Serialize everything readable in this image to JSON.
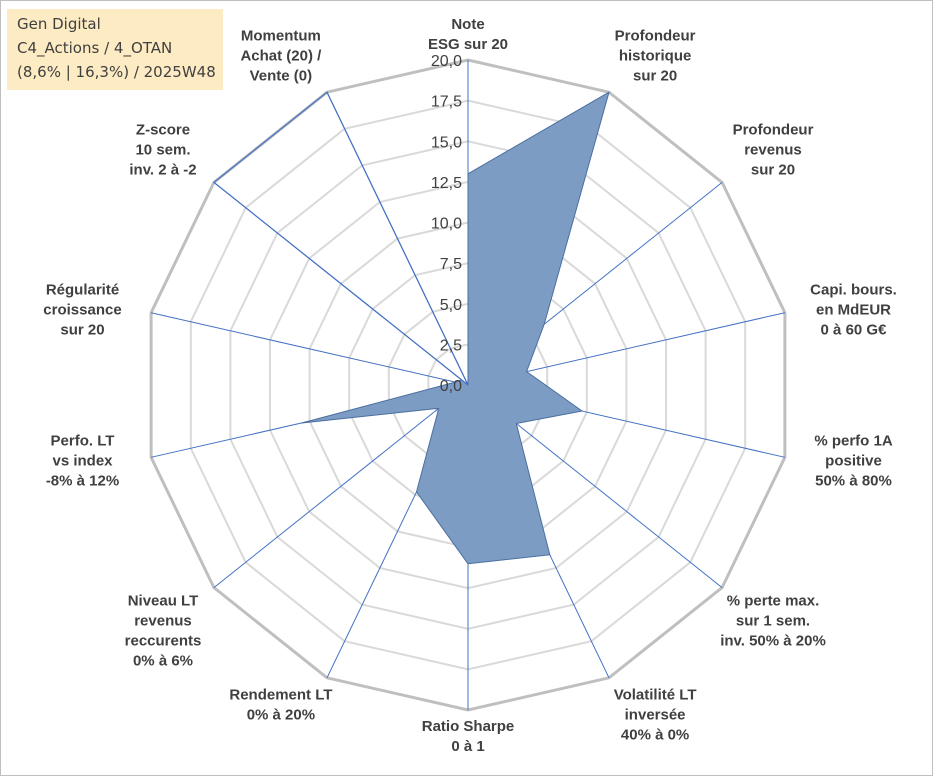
{
  "info": {
    "line1": "Gen Digital",
    "line2": "C4_Actions / 4_OTAN",
    "line3": "(8,6% | 16,3%) / 2025W48"
  },
  "chart_data": {
    "type": "radar",
    "title": "",
    "rmin": 0,
    "rmax": 20,
    "rings": [
      0,
      2.5,
      5,
      7.5,
      10,
      12.5,
      15,
      17.5,
      20
    ],
    "tick_labels": [
      "0,0",
      "2,5",
      "5,0",
      "7,5",
      "10,0",
      "12,5",
      "15,0",
      "17,5",
      "20,0"
    ],
    "axes": [
      {
        "label": [
          "Note",
          "ESG sur 20"
        ],
        "value": 13
      },
      {
        "label": [
          "Profondeur",
          "historique",
          "sur 20"
        ],
        "value": 20
      },
      {
        "label": [
          "Profondeur",
          "revenus",
          "sur 20"
        ],
        "value": 6
      },
      {
        "label": [
          "Capi. bours.",
          "en MdEUR",
          "0 à 60 G€"
        ],
        "value": 3.7
      },
      {
        "label": [
          "% perfo 1A",
          "positive",
          "50% à 80%"
        ],
        "value": 7.2
      },
      {
        "label": [
          "% perte max.",
          "sur 1 sem.",
          "inv. 50% à 20%"
        ],
        "value": 3.8
      },
      {
        "label": [
          "Volatilité LT",
          "inversée",
          "40% à 0%"
        ],
        "value": 11.6
      },
      {
        "label": [
          "Ratio Sharpe",
          "0 à 1"
        ],
        "value": 11
      },
      {
        "label": [
          "Rendement LT",
          "0% à 20%"
        ],
        "value": 7.3
      },
      {
        "label": [
          "Niveau LT",
          "revenus",
          "reccurents",
          "0% à 6%"
        ],
        "value": 2.3
      },
      {
        "label": [
          "Perfo. LT",
          "vs index",
          "-8% à 12%"
        ],
        "value": 10.5
      },
      {
        "label": [
          "Régularité",
          "croissance",
          "sur 20"
        ],
        "value": 0.8
      },
      {
        "label": [
          "Z-score",
          "10 sem.",
          "inv. 2 à -2"
        ],
        "value": 0.5
      },
      {
        "label": [
          "Momentum",
          "Achat (20) /",
          "Vente (0)"
        ],
        "value": 0
      }
    ],
    "series": [
      {
        "values": [
          13,
          20,
          6,
          3.7,
          7.2,
          3.8,
          11.6,
          11,
          7.3,
          2.3,
          10.5,
          0.8,
          0.5,
          0
        ]
      },
      {
        "values": [
          0,
          0,
          0,
          0,
          0,
          0,
          0,
          0,
          0,
          0,
          0,
          0,
          20,
          20
        ]
      }
    ],
    "colors": {
      "fill": "#7d9cc4",
      "fill_stroke": "#4a6fa0",
      "spoke": "#4472c4",
      "outer_ring": "#bfbfbf",
      "inner_ring": "#d9d9d9",
      "text": "#404040",
      "info_bg": "#fdebc3"
    }
  }
}
